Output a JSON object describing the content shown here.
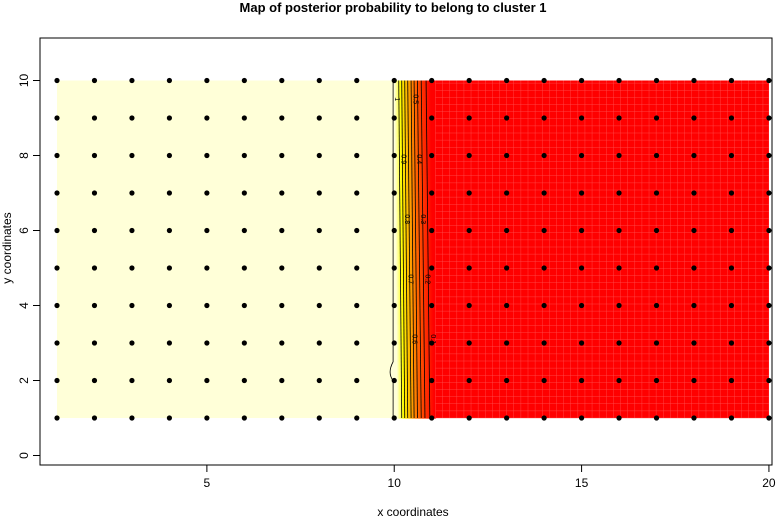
{
  "chart_data": {
    "type": "heatmap",
    "title": "Map of posterior probability to belong to cluster  1",
    "xlabel": "x coordinates",
    "ylabel": "y coordinates",
    "xticks": [
      5,
      10,
      15,
      20
    ],
    "yticks": [
      0,
      2,
      4,
      6,
      8,
      10
    ],
    "xlim": [
      0.55,
      20.08
    ],
    "ylim": [
      -0.25,
      11.15
    ],
    "grid": false,
    "points": {
      "x_values": [
        1,
        2,
        3,
        4,
        5,
        6,
        7,
        8,
        9,
        10,
        11,
        12,
        13,
        14,
        15,
        16,
        17,
        18,
        19,
        20
      ],
      "y_values": [
        1,
        2,
        3,
        4,
        5,
        6,
        7,
        8,
        9,
        10
      ]
    },
    "field_extent": {
      "x": [
        1,
        20
      ],
      "y": [
        1,
        10
      ]
    },
    "colors": {
      "high": "#FFFFD8",
      "mid": "#FFFF00",
      "orange": "#FF8C00",
      "low": "#FF0000"
    },
    "contours": [
      {
        "level": 1,
        "label": "1",
        "x_bottom": 9.97,
        "x_top": 9.97
      },
      {
        "level": 0.9,
        "label": "0.9",
        "x_bottom": 10.2,
        "x_top": 10.12
      },
      {
        "level": 0.8,
        "label": "0.8",
        "x_bottom": 10.28,
        "x_top": 10.2
      },
      {
        "level": 0.7,
        "label": "0.7",
        "x_bottom": 10.36,
        "x_top": 10.28
      },
      {
        "level": 0.6,
        "label": "0.6",
        "x_bottom": 10.45,
        "x_top": 10.36
      },
      {
        "level": 0.5,
        "label": "0.5",
        "x_bottom": 10.53,
        "x_top": 10.45
      },
      {
        "level": 0.4,
        "label": "0.4",
        "x_bottom": 10.62,
        "x_top": 10.53
      },
      {
        "level": 0.3,
        "label": "0.3",
        "x_bottom": 10.72,
        "x_top": 10.62
      },
      {
        "level": 0.2,
        "label": "0.2",
        "x_bottom": 10.82,
        "x_top": 10.72
      },
      {
        "level": 0.1,
        "label": "0.1",
        "x_bottom": 10.95,
        "x_top": 10.85
      }
    ]
  }
}
